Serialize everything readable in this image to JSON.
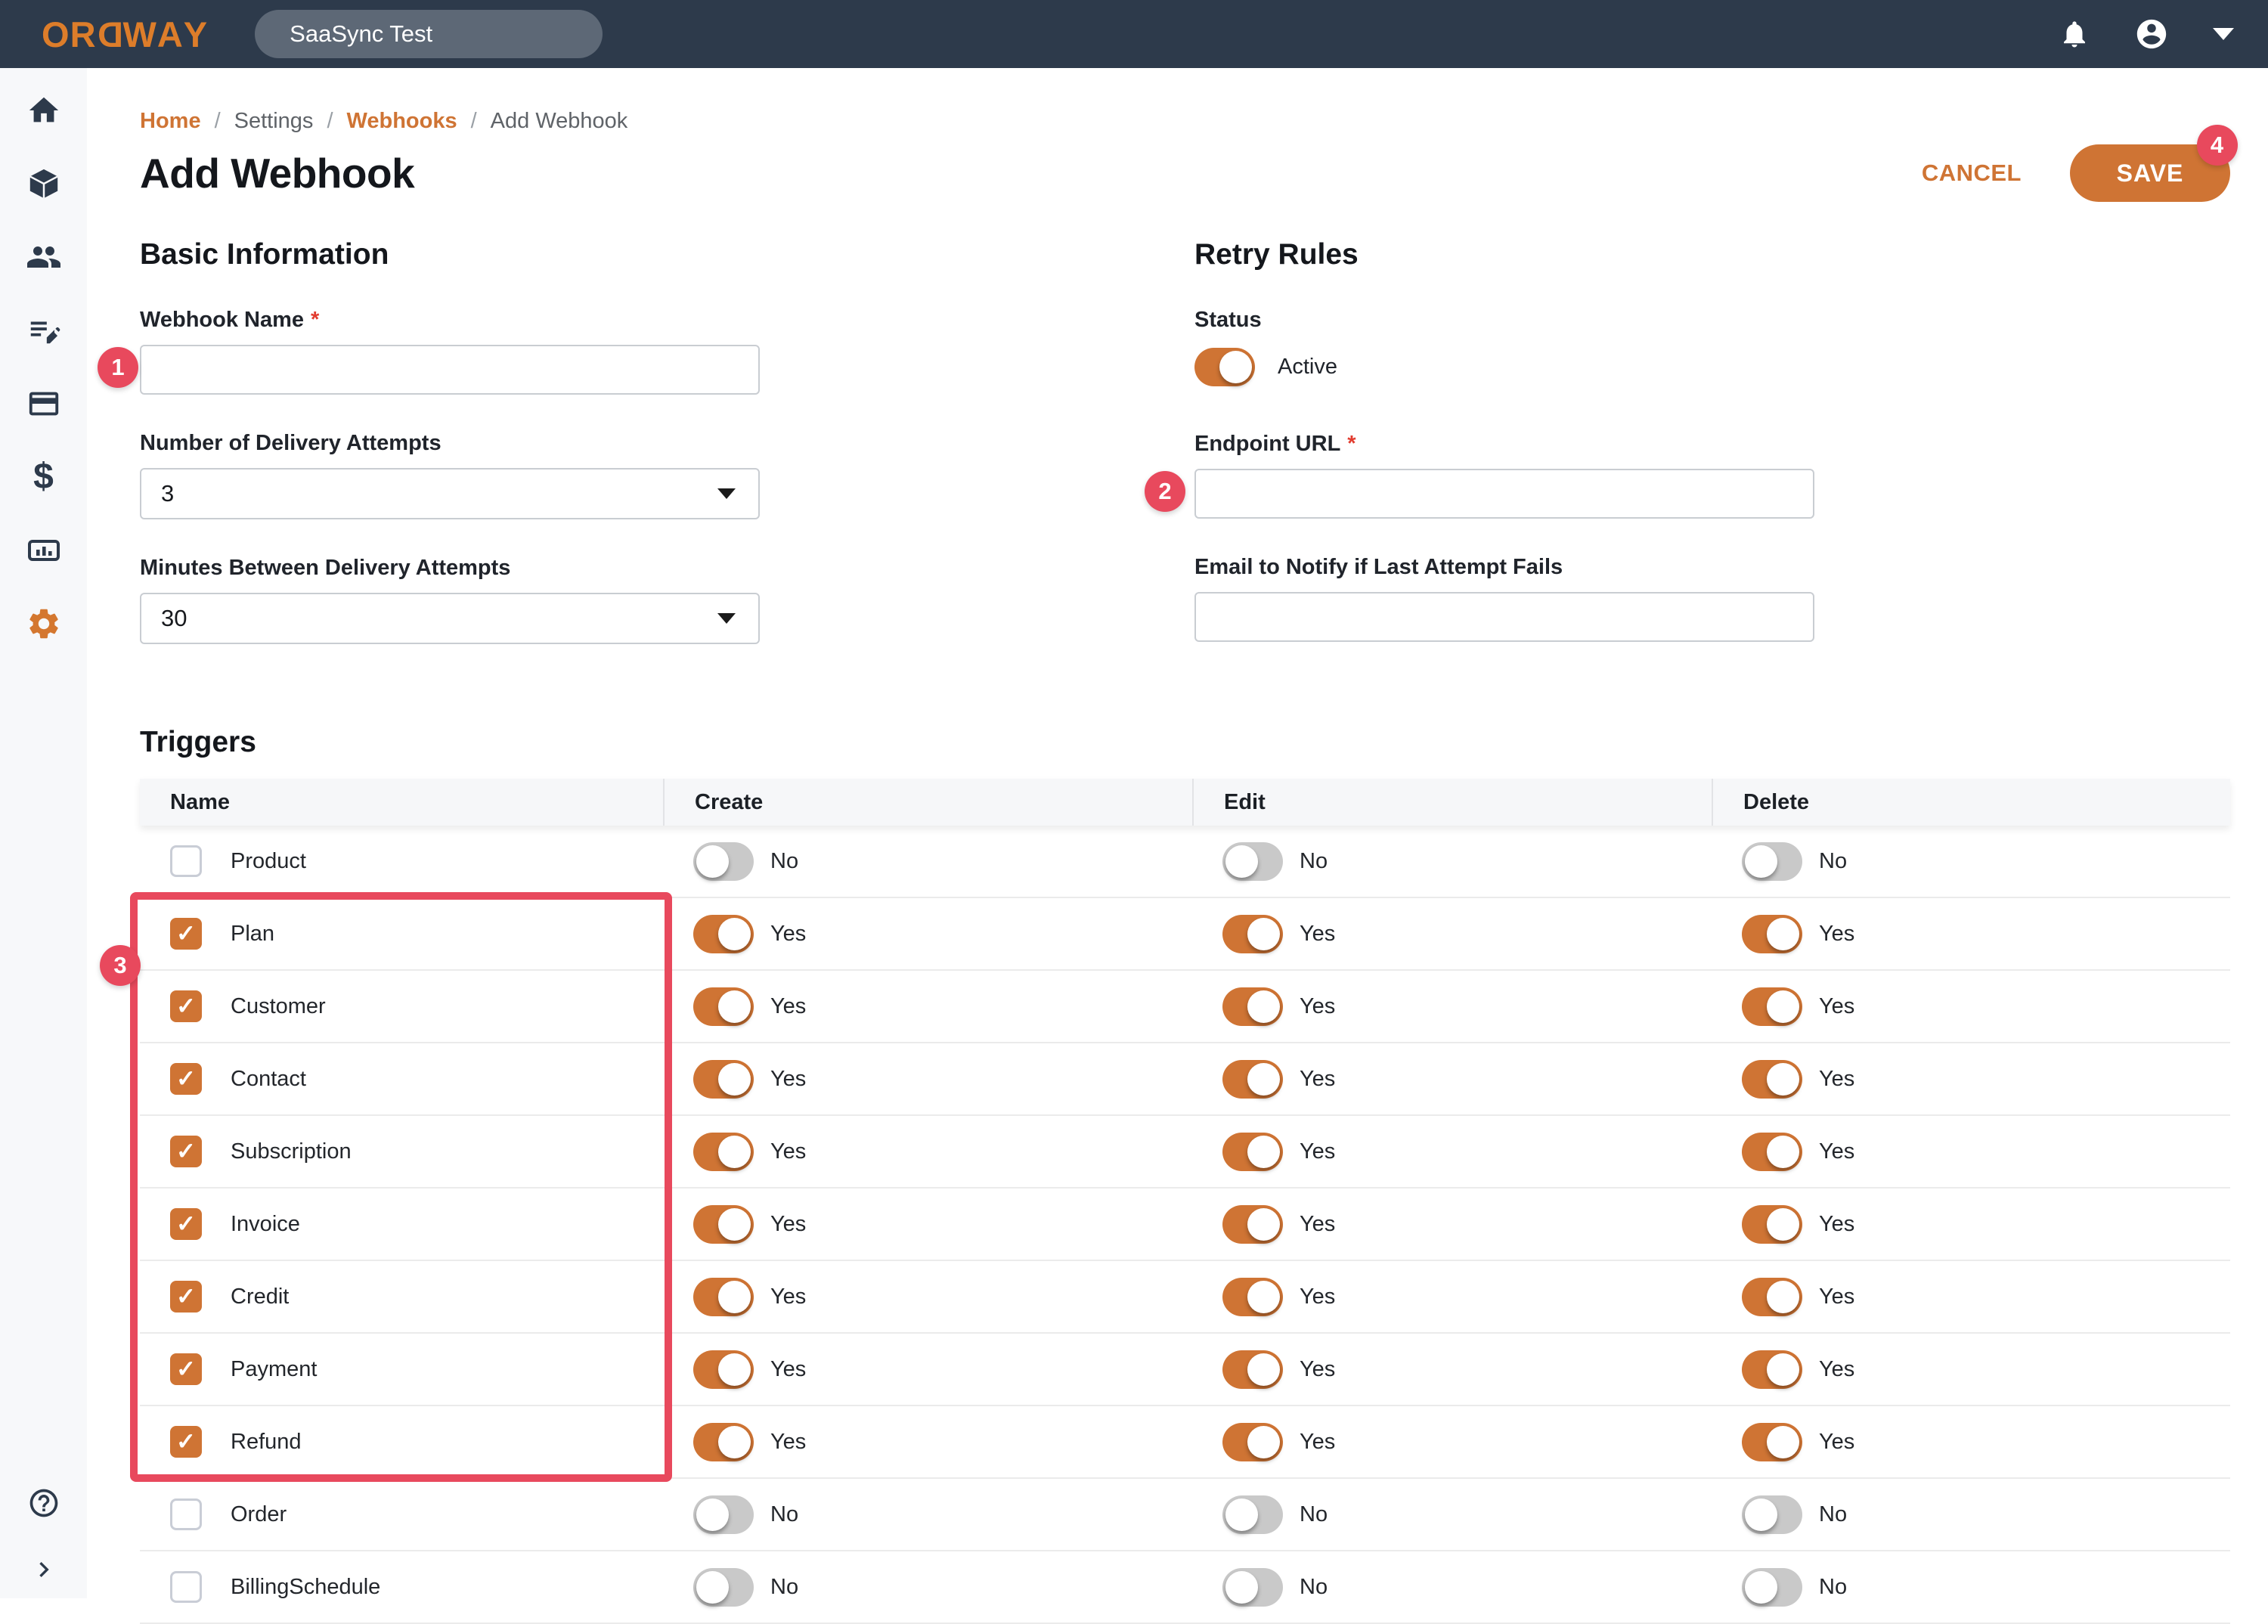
{
  "colors": {
    "accent_orange": "#cf7434",
    "logo_orange": "#dd7d2a",
    "annotation_red": "#e8495d",
    "topbar_navy": "#2d3a4b",
    "sidebar_bg": "#f7f8fa",
    "toggle_off_gray": "#c9c9c9"
  },
  "topbar": {
    "logo_text": "ORDWAY",
    "context_pill": "SaaSync Test",
    "icons": [
      "bell-icon",
      "avatar-icon",
      "caret-down-icon"
    ]
  },
  "sidebar": {
    "items": [
      {
        "icon": "home-icon",
        "active": false
      },
      {
        "icon": "package-icon",
        "active": false
      },
      {
        "icon": "people-icon",
        "active": false
      },
      {
        "icon": "document-edit-icon",
        "active": false
      },
      {
        "icon": "credit-card-icon",
        "active": false
      },
      {
        "icon": "dollar-icon",
        "active": false
      },
      {
        "icon": "bar-chart-icon",
        "active": false
      },
      {
        "icon": "gear-icon",
        "active": true
      }
    ],
    "footer": [
      {
        "icon": "help-icon"
      },
      {
        "icon": "chevron-right-icon"
      }
    ]
  },
  "breadcrumb": {
    "separator": "/",
    "items": [
      {
        "label": "Home",
        "emphasis": true
      },
      {
        "label": "Settings",
        "emphasis": false
      },
      {
        "label": "Webhooks",
        "emphasis": true
      },
      {
        "label": "Add Webhook",
        "emphasis": false
      }
    ]
  },
  "page": {
    "title": "Add Webhook",
    "cancel_label": "CANCEL",
    "save_label": "SAVE",
    "save_badge": "4"
  },
  "basic_information": {
    "heading": "Basic Information",
    "webhook_name": {
      "label": "Webhook Name",
      "required_mark": "*",
      "value": "",
      "badge": "1"
    },
    "delivery_attempts": {
      "label": "Number of Delivery Attempts",
      "value": "3"
    },
    "minutes_between_attempts": {
      "label": "Minutes Between Delivery Attempts",
      "value": "30"
    }
  },
  "retry_rules": {
    "heading": "Retry Rules",
    "status": {
      "label": "Status",
      "value": "Active",
      "enabled": true
    },
    "endpoint_url": {
      "label": "Endpoint URL",
      "required_mark": "*",
      "value": "",
      "badge": "2"
    },
    "email_to_notify": {
      "label": "Email to Notify if Last Attempt Fails",
      "value": ""
    }
  },
  "triggers": {
    "heading": "Triggers",
    "columns": [
      "Name",
      "Create",
      "Edit",
      "Delete"
    ],
    "toggle_on_label": "Yes",
    "toggle_off_label": "No",
    "highlight_badge": "3",
    "rows": [
      {
        "name": "Product",
        "checked": false,
        "create": false,
        "edit": false,
        "delete": false,
        "highlighted": false
      },
      {
        "name": "Plan",
        "checked": true,
        "create": true,
        "edit": true,
        "delete": true,
        "highlighted": true
      },
      {
        "name": "Customer",
        "checked": true,
        "create": true,
        "edit": true,
        "delete": true,
        "highlighted": true
      },
      {
        "name": "Contact",
        "checked": true,
        "create": true,
        "edit": true,
        "delete": true,
        "highlighted": true
      },
      {
        "name": "Subscription",
        "checked": true,
        "create": true,
        "edit": true,
        "delete": true,
        "highlighted": true
      },
      {
        "name": "Invoice",
        "checked": true,
        "create": true,
        "edit": true,
        "delete": true,
        "highlighted": true
      },
      {
        "name": "Credit",
        "checked": true,
        "create": true,
        "edit": true,
        "delete": true,
        "highlighted": true
      },
      {
        "name": "Payment",
        "checked": true,
        "create": true,
        "edit": true,
        "delete": true,
        "highlighted": true
      },
      {
        "name": "Refund",
        "checked": true,
        "create": true,
        "edit": true,
        "delete": true,
        "highlighted": true
      },
      {
        "name": "Order",
        "checked": false,
        "create": false,
        "edit": false,
        "delete": false,
        "highlighted": false
      },
      {
        "name": "BillingSchedule",
        "checked": false,
        "create": false,
        "edit": false,
        "delete": false,
        "highlighted": false
      }
    ]
  }
}
